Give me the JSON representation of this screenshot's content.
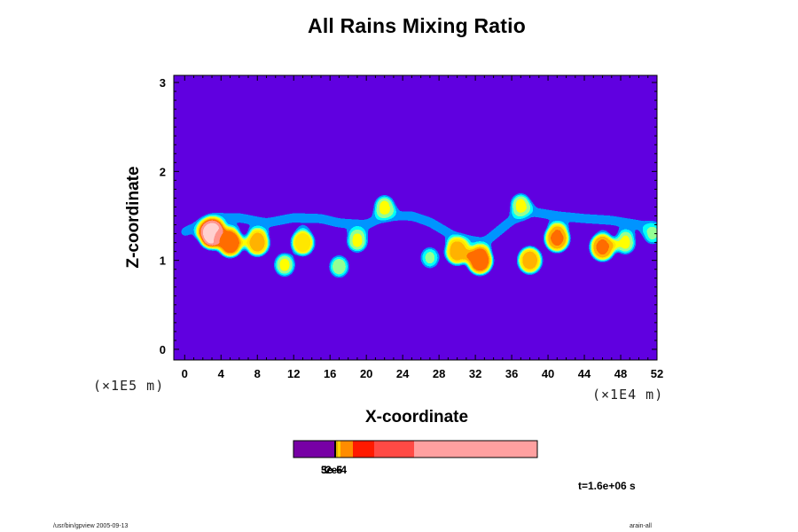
{
  "chart_data": {
    "type": "heatmap",
    "title": "All Rains Mixing Ratio",
    "xlabel": "X-coordinate",
    "ylabel": "Z-coordinate",
    "x_unit": "(×1E4 m)",
    "y_unit": "(×1E5 m)",
    "xlim": [
      -1.2,
      52
    ],
    "ylim": [
      -0.12,
      3.08
    ],
    "x_ticks": [
      "0",
      "4",
      "8",
      "12",
      "16",
      "20",
      "24",
      "28",
      "32",
      "36",
      "40",
      "44",
      "48",
      "52"
    ],
    "y_ticks": [
      "0",
      "1",
      "2",
      "3"
    ],
    "background_color": "#7700a5",
    "colorbar": {
      "colors": [
        "#7700a5",
        "#e0b000",
        "#ff8c00",
        "#ff6a00",
        "#ff1a00",
        "#ff4a45",
        "#ffa0a0"
      ],
      "tick_labels": [
        "3e-6",
        "5e-5",
        "2e-4"
      ]
    },
    "rain_bands": [
      {
        "x": [
          0,
          3.5,
          6,
          9,
          12,
          15,
          17,
          20,
          22,
          25,
          27,
          30,
          33,
          36,
          38,
          41,
          44,
          47,
          50,
          52
        ],
        "z": [
          1.32,
          1.48,
          1.48,
          1.42,
          1.48,
          1.47,
          1.42,
          1.4,
          1.5,
          1.5,
          1.43,
          1.25,
          1.2,
          1.45,
          1.55,
          1.5,
          1.47,
          1.45,
          1.4,
          1.35
        ]
      }
    ],
    "rain_cells": [
      {
        "x": 3.0,
        "z": 1.3,
        "intensity": 0.95
      },
      {
        "x": 5.0,
        "z": 1.2,
        "intensity": 0.85
      },
      {
        "x": 8.0,
        "z": 1.2,
        "intensity": 0.75
      },
      {
        "x": 11.0,
        "z": 0.95,
        "intensity": 0.55
      },
      {
        "x": 13.0,
        "z": 1.2,
        "intensity": 0.7
      },
      {
        "x": 17.0,
        "z": 0.93,
        "intensity": 0.5
      },
      {
        "x": 19.0,
        "z": 1.22,
        "intensity": 0.55
      },
      {
        "x": 22.0,
        "z": 1.6,
        "intensity": 0.55
      },
      {
        "x": 27.0,
        "z": 1.03,
        "intensity": 0.45
      },
      {
        "x": 30.0,
        "z": 1.1,
        "intensity": 0.75
      },
      {
        "x": 32.5,
        "z": 1.0,
        "intensity": 0.85
      },
      {
        "x": 37.0,
        "z": 1.62,
        "intensity": 0.55
      },
      {
        "x": 38.0,
        "z": 1.0,
        "intensity": 0.75
      },
      {
        "x": 41.0,
        "z": 1.25,
        "intensity": 0.8
      },
      {
        "x": 46.0,
        "z": 1.15,
        "intensity": 0.8
      },
      {
        "x": 48.5,
        "z": 1.2,
        "intensity": 0.55
      },
      {
        "x": 51.5,
        "z": 1.3,
        "intensity": 0.45
      }
    ],
    "time_label": "t=1.6e+06 s",
    "grid": false
  },
  "footer": {
    "left": "/usr/bin/gpview 2005-09-13",
    "right": "arain-all"
  }
}
